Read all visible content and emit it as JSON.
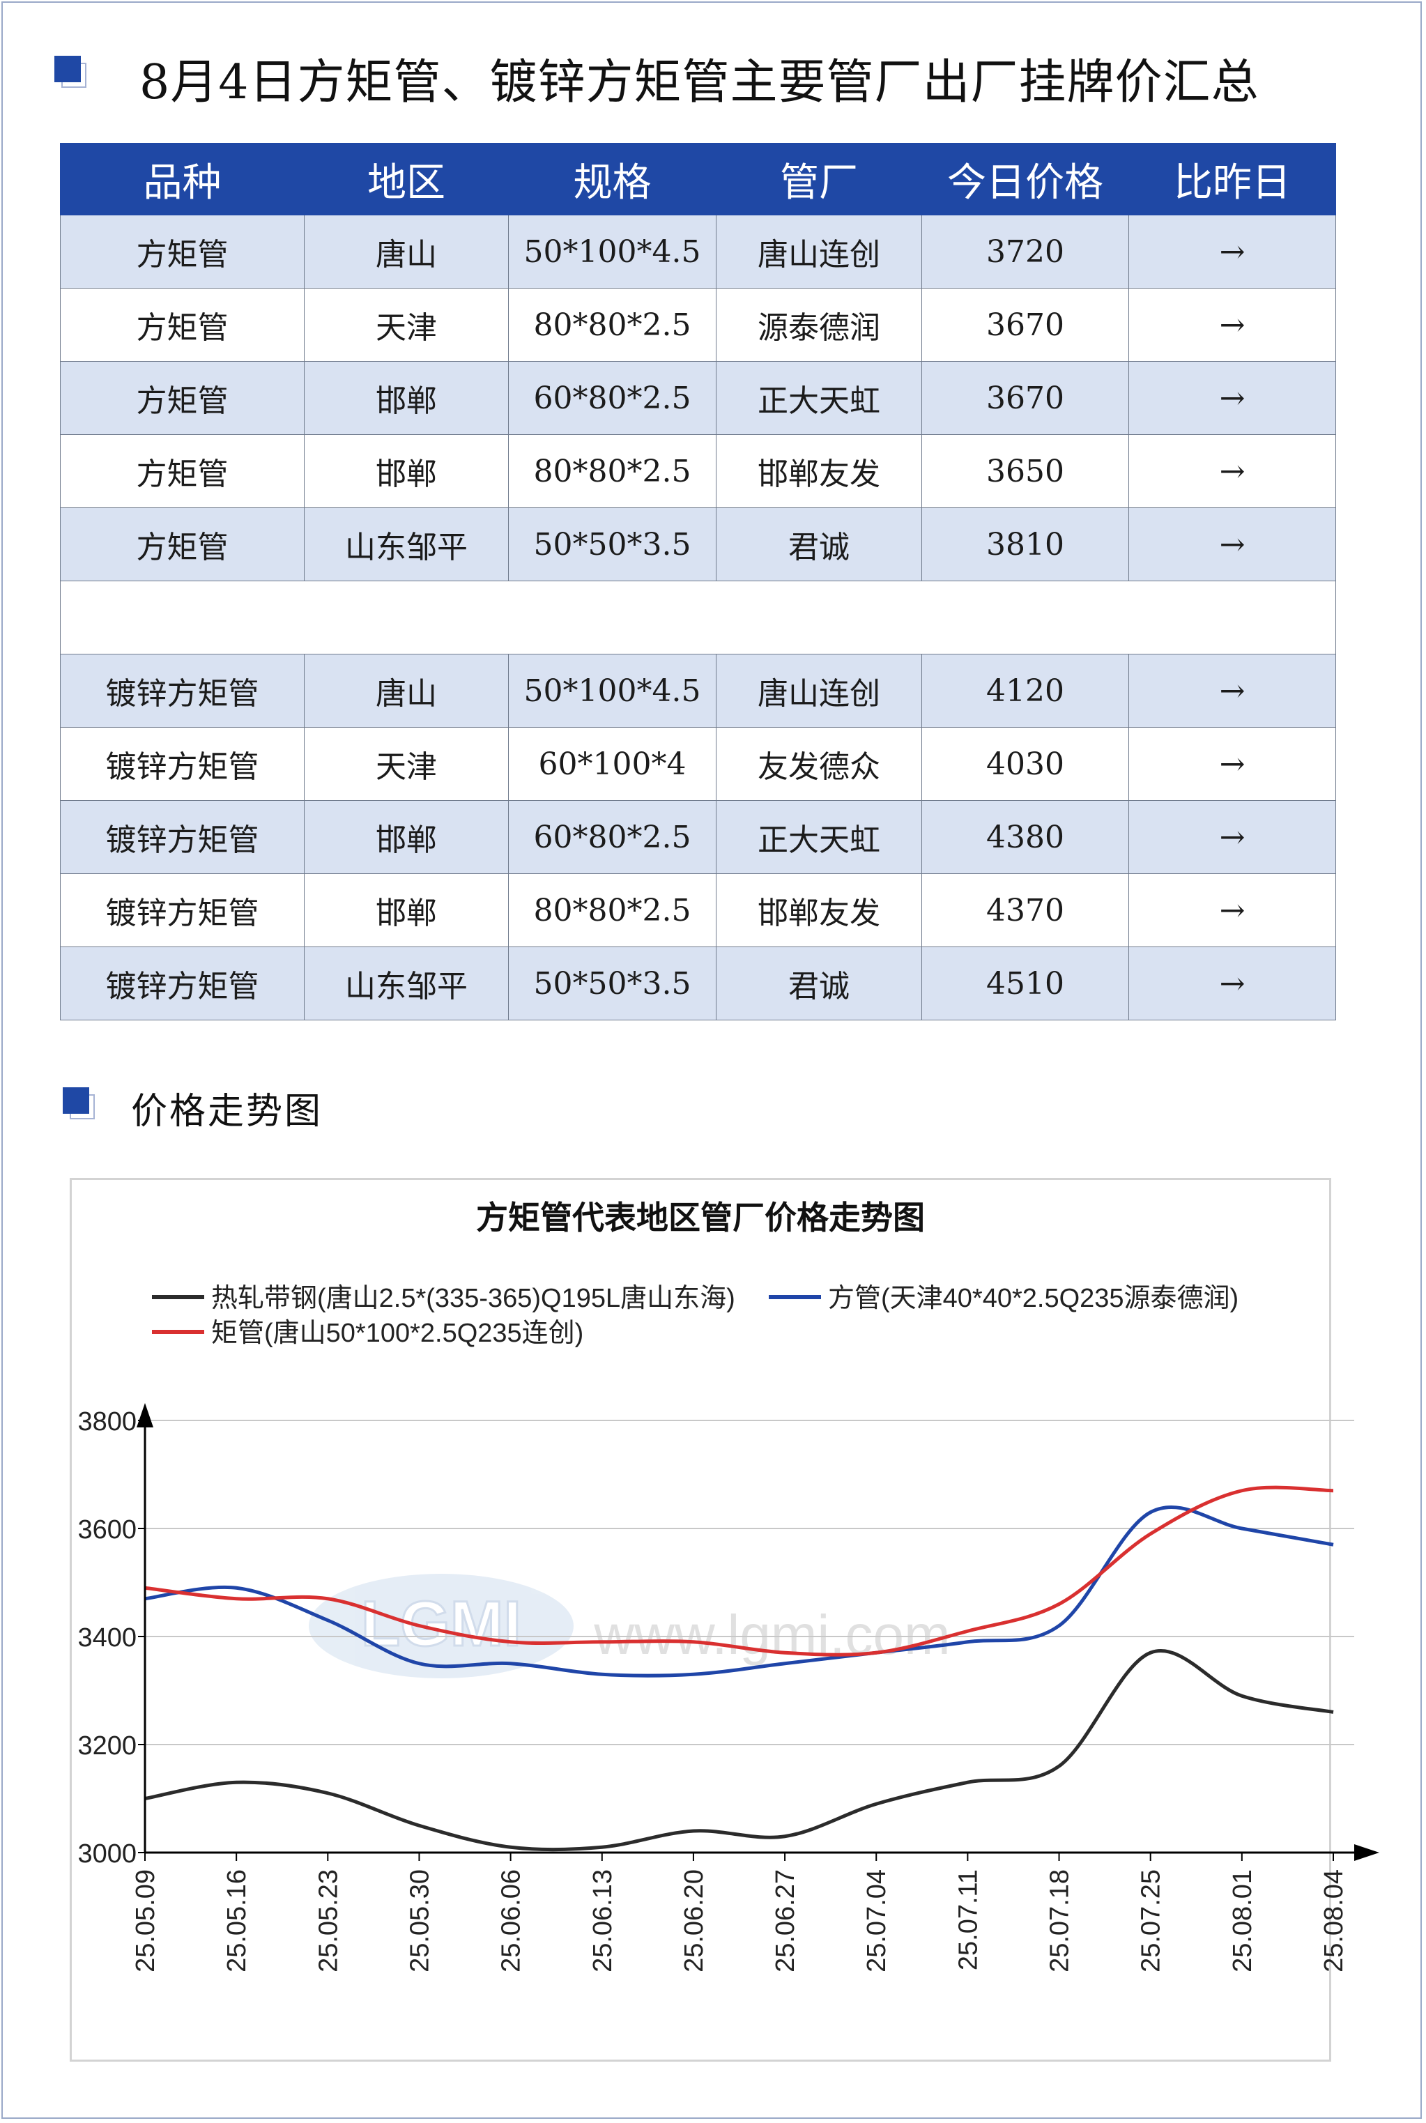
{
  "header": {
    "title": "8月4日方矩管、镀锌方矩管主要管厂出厂挂牌价汇总"
  },
  "table": {
    "columns": [
      "品种",
      "地区",
      "规格",
      "管厂",
      "今日价格",
      "比昨日"
    ],
    "group1": [
      [
        "方矩管",
        "唐山",
        "50*100*4.5",
        "唐山连创",
        "3720",
        "→"
      ],
      [
        "方矩管",
        "天津",
        "80*80*2.5",
        "源泰德润",
        "3670",
        "→"
      ],
      [
        "方矩管",
        "邯郸",
        "60*80*2.5",
        "正大天虹",
        "3670",
        "→"
      ],
      [
        "方矩管",
        "邯郸",
        "80*80*2.5",
        "邯郸友发",
        "3650",
        "→"
      ],
      [
        "方矩管",
        "山东邹平",
        "50*50*3.5",
        "君诚",
        "3810",
        "→"
      ]
    ],
    "group2": [
      [
        "镀锌方矩管",
        "唐山",
        "50*100*4.5",
        "唐山连创",
        "4120",
        "→"
      ],
      [
        "镀锌方矩管",
        "天津",
        "60*100*4",
        "友发德众",
        "4030",
        "→"
      ],
      [
        "镀锌方矩管",
        "邯郸",
        "60*80*2.5",
        "正大天虹",
        "4380",
        "→"
      ],
      [
        "镀锌方矩管",
        "邯郸",
        "80*80*2.5",
        "邯郸友发",
        "4370",
        "→"
      ],
      [
        "镀锌方矩管",
        "山东邹平",
        "50*50*3.5",
        "君诚",
        "4510",
        "→"
      ]
    ]
  },
  "section2": {
    "title": "价格走势图"
  },
  "watermark": {
    "logo": "LGMI",
    "url": "www.lgmi.com"
  },
  "chart_data": {
    "type": "line",
    "title": "方矩管代表地区管厂价格走势图",
    "x": [
      "25.05.09",
      "25.05.16",
      "25.05.23",
      "25.05.30",
      "25.06.06",
      "25.06.13",
      "25.06.20",
      "25.06.27",
      "25.07.04",
      "25.07.11",
      "25.07.18",
      "25.07.25",
      "25.08.01",
      "25.08.04"
    ],
    "ylim": [
      3000,
      3800
    ],
    "yticks": [
      "3000",
      "3200",
      "3400",
      "3600",
      "3800"
    ],
    "grid": true,
    "legend_position": "top",
    "series": [
      {
        "name": "热轧带钢(唐山2.5*(335-365)Q195L唐山东海)",
        "color": "#2b2b2b",
        "values": [
          3100,
          3130,
          3110,
          3050,
          3010,
          3010,
          3040,
          3030,
          3090,
          3130,
          3160,
          3370,
          3290,
          3260
        ]
      },
      {
        "name": "方管(天津40*40*2.5Q235源泰德润)",
        "color": "#1f45a8",
        "values": [
          3470,
          3490,
          3430,
          3350,
          3350,
          3330,
          3330,
          3350,
          3370,
          3390,
          3420,
          3630,
          3600,
          3570
        ]
      },
      {
        "name": "矩管(唐山50*100*2.5Q235连创)",
        "color": "#d93030",
        "values": [
          3490,
          3470,
          3470,
          3420,
          3390,
          3390,
          3390,
          3370,
          3370,
          3410,
          3460,
          3590,
          3670,
          3670
        ]
      }
    ]
  }
}
